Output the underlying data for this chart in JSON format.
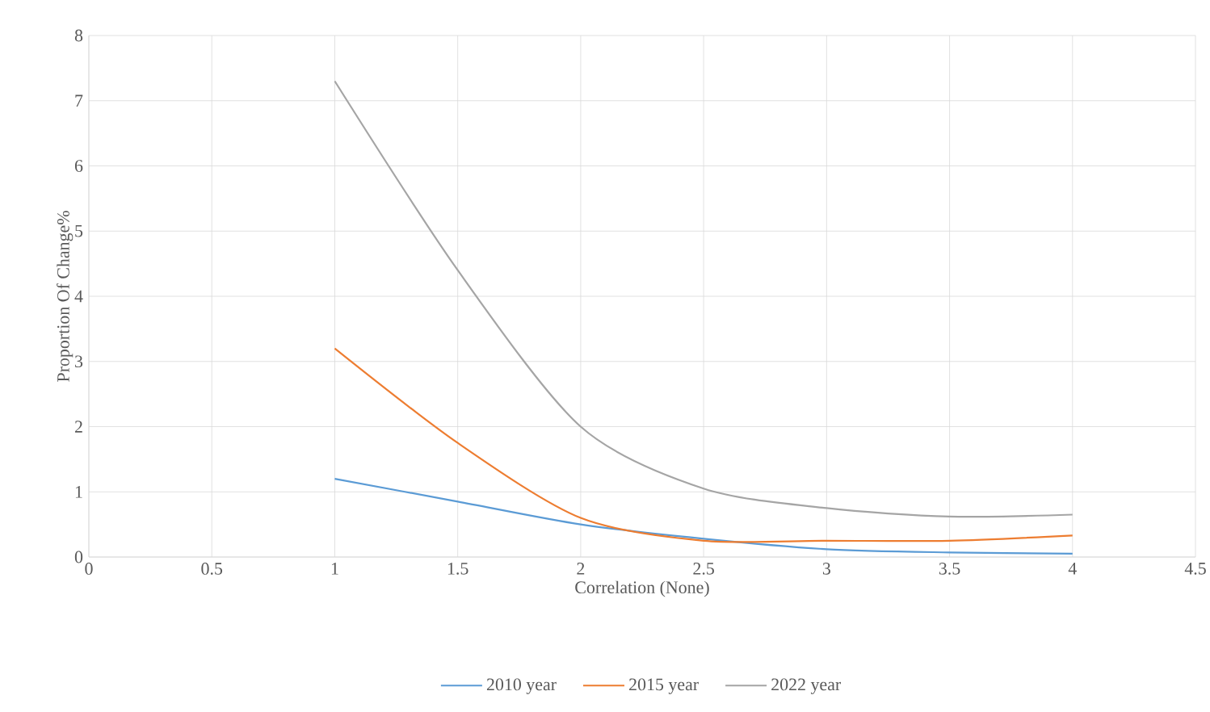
{
  "chart_data": {
    "type": "line",
    "xlabel": "Correlation (None)",
    "ylabel": "Proportion Of Change%",
    "x": [
      1,
      1.5,
      2,
      2.5,
      3,
      3.5,
      4
    ],
    "series": [
      {
        "name": "2010 year",
        "color": "#5b9bd5",
        "values": [
          1.2,
          0.85,
          0.5,
          0.28,
          0.12,
          0.07,
          0.05
        ]
      },
      {
        "name": "2015 year",
        "color": "#ed7d31",
        "values": [
          3.2,
          1.75,
          0.6,
          0.25,
          0.25,
          0.25,
          0.33
        ]
      },
      {
        "name": "2022 year",
        "color": "#a5a5a5",
        "values": [
          7.3,
          4.4,
          2.0,
          1.05,
          0.75,
          0.62,
          0.65
        ]
      }
    ],
    "xlim": [
      0,
      4.5
    ],
    "xticks": [
      0,
      0.5,
      1,
      1.5,
      2,
      2.5,
      3,
      3.5,
      4,
      4.5
    ],
    "ylim": [
      0,
      8
    ],
    "yticks": [
      0,
      1,
      2,
      3,
      4,
      5,
      6,
      7,
      8
    ],
    "grid": true,
    "legend": "bottom",
    "marker": "none",
    "line_style": "solid"
  }
}
